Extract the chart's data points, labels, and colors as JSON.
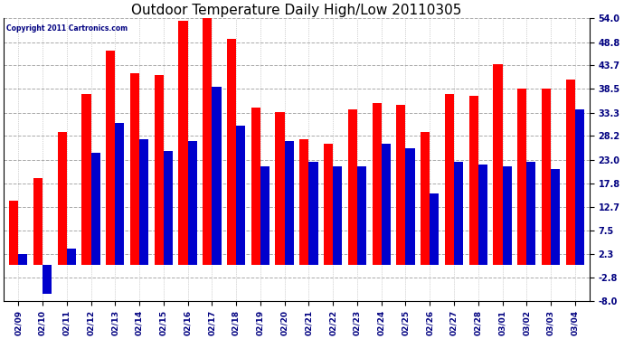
{
  "title": "Outdoor Temperature Daily High/Low 20110305",
  "copyright": "Copyright 2011 Cartronics.com",
  "dates": [
    "02/09",
    "02/10",
    "02/11",
    "02/12",
    "02/13",
    "02/14",
    "02/15",
    "02/16",
    "02/17",
    "02/18",
    "02/19",
    "02/20",
    "02/21",
    "02/22",
    "02/23",
    "02/24",
    "02/25",
    "02/26",
    "02/27",
    "02/28",
    "03/01",
    "03/02",
    "03/03",
    "03/04"
  ],
  "highs": [
    14.0,
    19.0,
    29.0,
    37.5,
    47.0,
    42.0,
    41.5,
    53.5,
    54.0,
    49.5,
    34.5,
    33.5,
    27.5,
    26.5,
    34.0,
    35.5,
    35.0,
    29.0,
    37.5,
    37.0,
    44.0,
    38.5,
    38.5,
    40.5
  ],
  "lows": [
    2.3,
    -6.5,
    3.5,
    24.5,
    31.0,
    27.5,
    25.0,
    27.0,
    39.0,
    30.5,
    21.5,
    27.0,
    22.5,
    21.5,
    21.5,
    26.5,
    25.5,
    15.5,
    22.5,
    22.0,
    21.5,
    22.5,
    21.0,
    34.0
  ],
  "high_color": "#ff0000",
  "low_color": "#0000cc",
  "background_color": "#ffffff",
  "plot_background": "#ffffff",
  "grid_color": "#aaaaaa",
  "title_fontsize": 11,
  "yticks": [
    54.0,
    48.8,
    43.7,
    38.5,
    33.3,
    28.2,
    23.0,
    17.8,
    12.7,
    7.5,
    2.3,
    -2.8,
    -8.0
  ],
  "ymin": -8.0,
  "ymax": 54.0,
  "figwidth": 6.9,
  "figheight": 3.75,
  "dpi": 100
}
